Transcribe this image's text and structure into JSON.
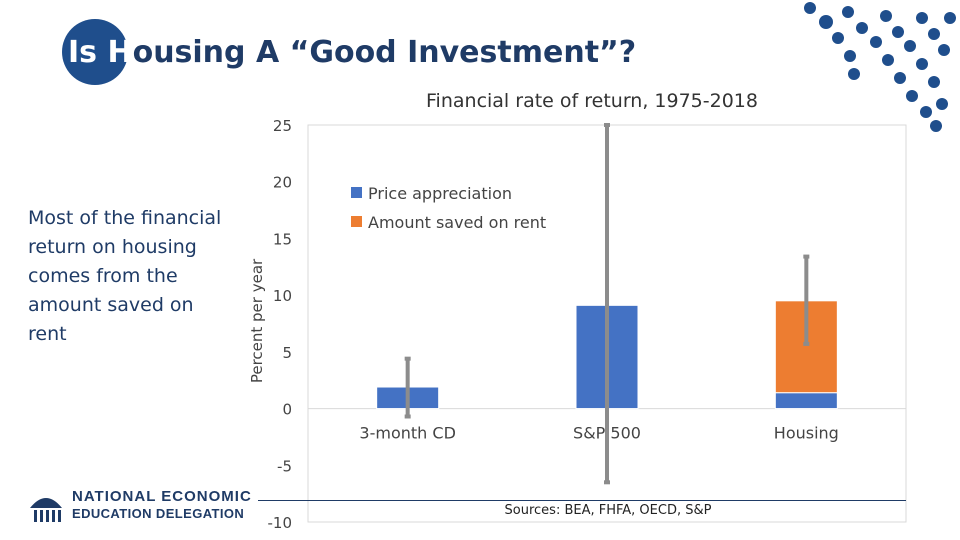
{
  "slide": {
    "title_first": "Is H",
    "title_rest": "ousing A “Good Investment”?",
    "side_note": "Most of the financial return on housing comes from the amount saved on rent",
    "sources": "Sources: BEA, FHFA, OECD, S&P",
    "logo": {
      "line1": "NATIONAL ECONOMIC",
      "line2": "EDUCATION DELEGATION",
      "icon": "torch-logo-icon"
    },
    "colors": {
      "navy": "#1f3b66",
      "dots": "#1f4e8c"
    }
  },
  "chart_data": {
    "type": "bar",
    "stacked": true,
    "title": "Financial rate of return, 1975-2018",
    "xlabel": "",
    "ylabel": "Percent per year",
    "ylim": [
      -10,
      25
    ],
    "yticks": [
      25,
      20,
      15,
      10,
      5,
      0,
      -5,
      -10
    ],
    "categories": [
      "3-month CD",
      "S&P 500",
      "Housing"
    ],
    "series": [
      {
        "name": "Price appreciation",
        "color": "#4472c4",
        "values": [
          1.9,
          9.1,
          1.4
        ]
      },
      {
        "name": "Amount saved on rent",
        "color": "#ed7d31",
        "values": [
          0,
          0,
          8.1
        ]
      }
    ],
    "error_bars": [
      {
        "low": -0.7,
        "high": 4.4
      },
      {
        "low": -6.5,
        "high": 25.0
      },
      {
        "low": 5.7,
        "high": 13.4
      }
    ],
    "legend_position": "top-left",
    "grid": false
  }
}
